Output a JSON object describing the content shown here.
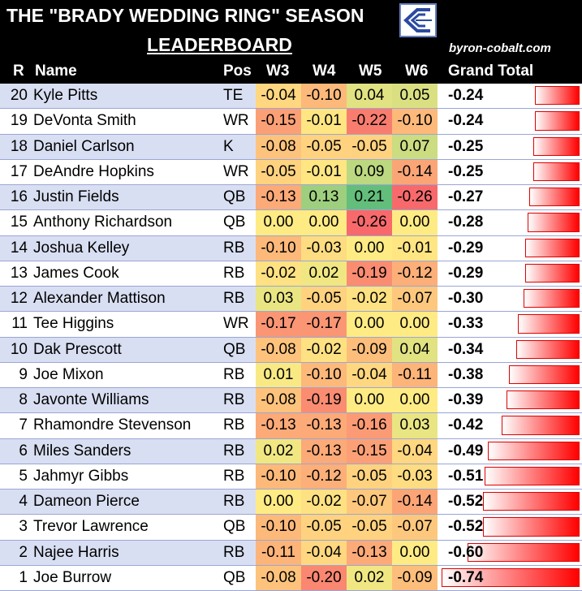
{
  "title_line1": "THE \"BRADY WEDDING RING\" SEASON",
  "title_line2": "LEADERBOARD",
  "site": "byron-cobalt.com",
  "logo_icon": "bc-logo-icon",
  "columns": {
    "r": "R",
    "name": "Name",
    "pos": "Pos",
    "w3": "W3",
    "w4": "W4",
    "w5": "W5",
    "w6": "W6",
    "total": "Grand Total"
  },
  "heat_scale": {
    "min": -0.26,
    "mid": 0.0,
    "max": 0.21,
    "min_color": "#f8696b",
    "mid_color": "#ffeb84",
    "max_color": "#63be7b"
  },
  "bar_color": "#ff0000",
  "bar_max_abs": 0.74,
  "players": [
    {
      "r": "20",
      "name": "Kyle Pitts",
      "pos": "TE",
      "w3": "-0.04",
      "w4": "-0.10",
      "w5": "0.04",
      "w6": "0.05",
      "total": "-0.24"
    },
    {
      "r": "19",
      "name": "DeVonta Smith",
      "pos": "WR",
      "w3": "-0.15",
      "w4": "-0.01",
      "w5": "-0.22",
      "w6": "-0.10",
      "total": "-0.24"
    },
    {
      "r": "18",
      "name": "Daniel Carlson",
      "pos": "K",
      "w3": "-0.08",
      "w4": "-0.05",
      "w5": "-0.05",
      "w6": "0.07",
      "total": "-0.25"
    },
    {
      "r": "17",
      "name": "DeAndre Hopkins",
      "pos": "WR",
      "w3": "-0.05",
      "w4": "-0.01",
      "w5": "0.09",
      "w6": "-0.14",
      "total": "-0.25"
    },
    {
      "r": "16",
      "name": "Justin Fields",
      "pos": "QB",
      "w3": "-0.13",
      "w4": "0.13",
      "w5": "0.21",
      "w6": "-0.26",
      "total": "-0.27"
    },
    {
      "r": "15",
      "name": "Anthony Richardson",
      "pos": "QB",
      "w3": "0.00",
      "w4": "0.00",
      "w5": "-0.26",
      "w6": "0.00",
      "total": "-0.28"
    },
    {
      "r": "14",
      "name": "Joshua Kelley",
      "pos": "RB",
      "w3": "-0.10",
      "w4": "-0.03",
      "w5": "0.00",
      "w6": "-0.01",
      "total": "-0.29"
    },
    {
      "r": "13",
      "name": "James Cook",
      "pos": "RB",
      "w3": "-0.02",
      "w4": "0.02",
      "w5": "-0.19",
      "w6": "-0.12",
      "total": "-0.29"
    },
    {
      "r": "12",
      "name": "Alexander Mattison",
      "pos": "RB",
      "w3": "0.03",
      "w4": "-0.05",
      "w5": "-0.02",
      "w6": "-0.07",
      "total": "-0.30"
    },
    {
      "r": "11",
      "name": "Tee Higgins",
      "pos": "WR",
      "w3": "-0.17",
      "w4": "-0.17",
      "w5": "0.00",
      "w6": "0.00",
      "total": "-0.33"
    },
    {
      "r": "10",
      "name": "Dak Prescott",
      "pos": "QB",
      "w3": "-0.08",
      "w4": "-0.02",
      "w5": "-0.09",
      "w6": "0.04",
      "total": "-0.34"
    },
    {
      "r": "9",
      "name": "Joe Mixon",
      "pos": "RB",
      "w3": "0.01",
      "w4": "-0.10",
      "w5": "-0.04",
      "w6": "-0.11",
      "total": "-0.38"
    },
    {
      "r": "8",
      "name": "Javonte Williams",
      "pos": "RB",
      "w3": "-0.08",
      "w4": "-0.19",
      "w5": "0.00",
      "w6": "0.00",
      "total": "-0.39"
    },
    {
      "r": "7",
      "name": "Rhamondre Stevenson",
      "pos": "RB",
      "w3": "-0.13",
      "w4": "-0.13",
      "w5": "-0.16",
      "w6": "0.03",
      "total": "-0.42"
    },
    {
      "r": "6",
      "name": "Miles Sanders",
      "pos": "RB",
      "w3": "0.02",
      "w4": "-0.13",
      "w5": "-0.15",
      "w6": "-0.04",
      "total": "-0.49"
    },
    {
      "r": "5",
      "name": "Jahmyr Gibbs",
      "pos": "RB",
      "w3": "-0.10",
      "w4": "-0.12",
      "w5": "-0.05",
      "w6": "-0.03",
      "total": "-0.51"
    },
    {
      "r": "4",
      "name": "Dameon Pierce",
      "pos": "RB",
      "w3": "0.00",
      "w4": "-0.02",
      "w5": "-0.07",
      "w6": "-0.14",
      "total": "-0.52"
    },
    {
      "r": "3",
      "name": "Trevor Lawrence",
      "pos": "QB",
      "w3": "-0.10",
      "w4": "-0.05",
      "w5": "-0.05",
      "w6": "-0.07",
      "total": "-0.52"
    },
    {
      "r": "2",
      "name": "Najee Harris",
      "pos": "RB",
      "w3": "-0.11",
      "w4": "-0.04",
      "w5": "-0.13",
      "w6": "0.00",
      "total": "-0.60"
    },
    {
      "r": "1",
      "name": "Joe Burrow",
      "pos": "QB",
      "w3": "-0.08",
      "w4": "-0.20",
      "w5": "0.02",
      "w6": "-0.09",
      "total": "-0.74"
    }
  ]
}
